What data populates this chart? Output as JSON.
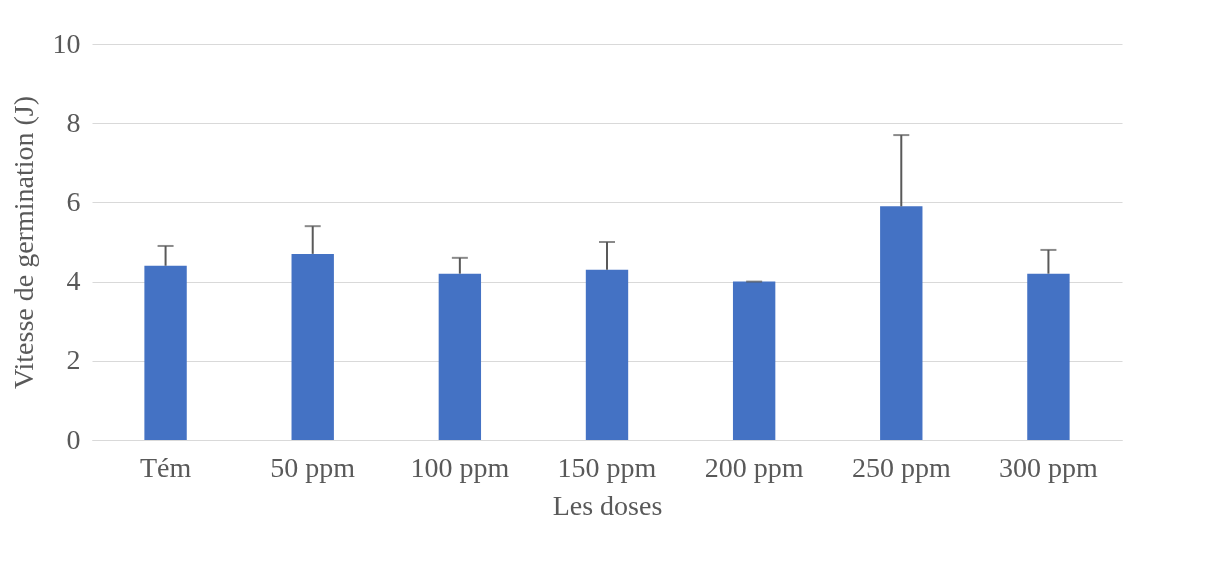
{
  "chart_data": {
    "type": "bar",
    "xlabel": "Les doses",
    "ylabel": "Vitesse de germination (J)",
    "categories": [
      "Tém",
      "50 ppm",
      "100 ppm",
      "150 ppm",
      "200 ppm",
      "250 ppm",
      "300 ppm"
    ],
    "values": [
      4.4,
      4.7,
      4.2,
      4.3,
      4.0,
      5.9,
      4.2
    ],
    "errors": [
      [
        4.4,
        4.9
      ],
      [
        4.7,
        5.4
      ],
      [
        4.2,
        4.6
      ],
      [
        4.3,
        5.0
      ],
      [
        4.0,
        4.0
      ],
      [
        5.9,
        7.7
      ],
      [
        4.2,
        4.8
      ]
    ],
    "color": "#4472c4",
    "ylim": [
      0,
      10
    ],
    "yticks": [
      0,
      2,
      4,
      6,
      8,
      10
    ],
    "grid": "y"
  }
}
